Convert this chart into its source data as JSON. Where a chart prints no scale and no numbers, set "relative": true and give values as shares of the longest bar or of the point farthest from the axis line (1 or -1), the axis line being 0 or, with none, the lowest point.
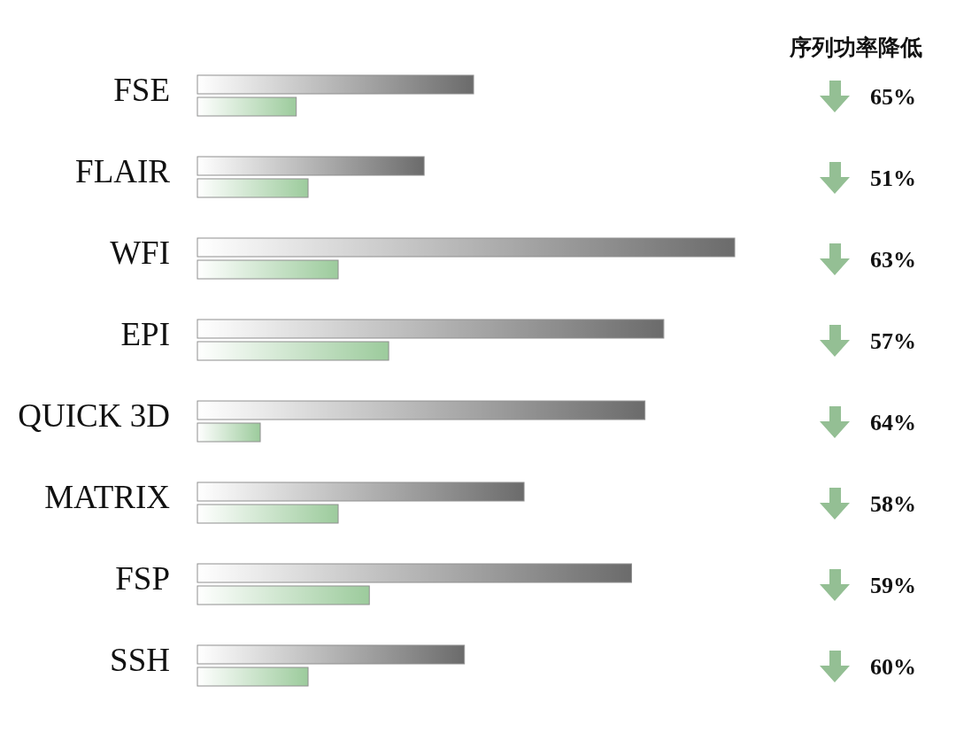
{
  "chart_data": {
    "type": "bar",
    "orientation": "horizontal",
    "relative": true,
    "title": "序列功率降低",
    "categories": [
      "FSE",
      "FLAIR",
      "WFI",
      "EPI",
      "QUICK 3D",
      "MATRIX",
      "FSP",
      "SSH"
    ],
    "series": [
      {
        "color": "#6b6b6b",
        "values": [
          0.514,
          0.422,
          1,
          0.868,
          0.833,
          0.608,
          0.808,
          0.497
        ]
      },
      {
        "color": "#9ccb9c",
        "values": [
          0.184,
          0.206,
          0.262,
          0.356,
          0.117,
          0.262,
          0.32,
          0.206
        ]
      }
    ],
    "annotations": [
      "65%",
      "51%",
      "63%",
      "57%",
      "64%",
      "58%",
      "59%",
      "60%"
    ]
  }
}
